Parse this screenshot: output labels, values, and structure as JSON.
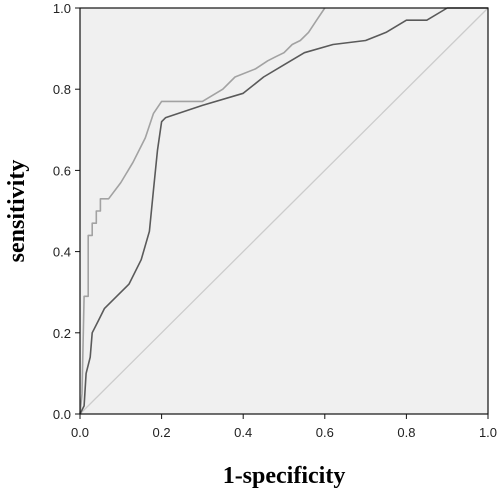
{
  "chart_data": {
    "type": "line",
    "title": "",
    "xlabel": "1-specificity",
    "ylabel": "sensitivity",
    "xlim": [
      0,
      1
    ],
    "ylim": [
      0,
      1
    ],
    "x_ticks": [
      "0.0",
      "0.2",
      "0.4",
      "0.6",
      "0.8",
      "1.0"
    ],
    "y_ticks": [
      "0.0",
      "0.2",
      "0.4",
      "0.6",
      "0.8",
      "1.0"
    ],
    "grid": false,
    "legend": "none",
    "plot_background": "#f0f0f0",
    "series": [
      {
        "color": "#a2a2a2",
        "points": [
          [
            0.0,
            0.0
          ],
          [
            0.005,
            0.05
          ],
          [
            0.01,
            0.29
          ],
          [
            0.02,
            0.29
          ],
          [
            0.02,
            0.44
          ],
          [
            0.03,
            0.44
          ],
          [
            0.03,
            0.47
          ],
          [
            0.04,
            0.47
          ],
          [
            0.04,
            0.5
          ],
          [
            0.05,
            0.5
          ],
          [
            0.05,
            0.53
          ],
          [
            0.07,
            0.53
          ],
          [
            0.1,
            0.57
          ],
          [
            0.13,
            0.62
          ],
          [
            0.16,
            0.68
          ],
          [
            0.18,
            0.74
          ],
          [
            0.2,
            0.77
          ],
          [
            0.3,
            0.77
          ],
          [
            0.35,
            0.8
          ],
          [
            0.38,
            0.83
          ],
          [
            0.43,
            0.85
          ],
          [
            0.46,
            0.87
          ],
          [
            0.48,
            0.88
          ],
          [
            0.5,
            0.89
          ],
          [
            0.52,
            0.91
          ],
          [
            0.54,
            0.92
          ],
          [
            0.56,
            0.94
          ],
          [
            0.58,
            0.97
          ],
          [
            0.6,
            1.0
          ]
        ]
      },
      {
        "color": "#5a5a5a",
        "points": [
          [
            0.0,
            0.0
          ],
          [
            0.01,
            0.02
          ],
          [
            0.015,
            0.1
          ],
          [
            0.025,
            0.14
          ],
          [
            0.03,
            0.2
          ],
          [
            0.045,
            0.23
          ],
          [
            0.06,
            0.26
          ],
          [
            0.09,
            0.29
          ],
          [
            0.12,
            0.32
          ],
          [
            0.15,
            0.38
          ],
          [
            0.17,
            0.45
          ],
          [
            0.18,
            0.55
          ],
          [
            0.19,
            0.65
          ],
          [
            0.2,
            0.72
          ],
          [
            0.21,
            0.73
          ],
          [
            0.3,
            0.76
          ],
          [
            0.4,
            0.79
          ],
          [
            0.45,
            0.83
          ],
          [
            0.5,
            0.86
          ],
          [
            0.55,
            0.89
          ],
          [
            0.62,
            0.91
          ],
          [
            0.7,
            0.92
          ],
          [
            0.75,
            0.94
          ],
          [
            0.8,
            0.97
          ],
          [
            0.85,
            0.97
          ],
          [
            0.9,
            1.0
          ],
          [
            1.0,
            1.0
          ]
        ]
      },
      {
        "color": "#cccccc",
        "points": [
          [
            0,
            0
          ],
          [
            1,
            1
          ]
        ]
      }
    ]
  }
}
